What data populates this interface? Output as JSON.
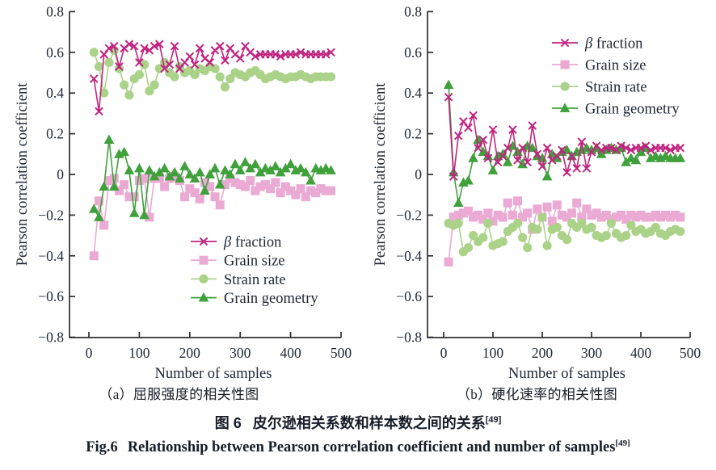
{
  "figure": {
    "caption_a": "（a）屈服强度的相关性图",
    "caption_b": "（b）硬化速率的相关性图",
    "title_zh_label": "图 6",
    "title_zh_text": "皮尔逊相关系数和样本数之间的关系",
    "title_zh_ref": "[49]",
    "title_en_label": "Fig.6",
    "title_en_text": "Relationship between Pearson correlation coefficient and number of samples",
    "title_en_ref": "[49]"
  },
  "colors": {
    "beta": "#c02480",
    "grain_size": "#eaaad3",
    "strain_rate": "#abd289",
    "grain_geometry": "#3fa03c",
    "tick_text": "#1d2633",
    "axis": "#2f2f2f"
  },
  "chart_data": [
    {
      "type": "line",
      "panel": "a",
      "xlabel": "Number of samples",
      "ylabel": "Pearson correlation coefficient",
      "xlim": [
        0,
        500
      ],
      "ylim": [
        -0.8,
        0.8
      ],
      "xticks": [
        0,
        100,
        200,
        300,
        400,
        500
      ],
      "yticks": [
        0.8,
        0.6,
        0.4,
        0.2,
        0,
        -0.2,
        -0.4,
        -0.6,
        -0.8
      ],
      "grid": false,
      "legend_position": "lower-right-inside",
      "x": [
        10,
        20,
        30,
        40,
        50,
        60,
        70,
        80,
        90,
        100,
        110,
        120,
        130,
        140,
        150,
        160,
        170,
        180,
        190,
        200,
        210,
        220,
        230,
        240,
        250,
        260,
        270,
        280,
        290,
        300,
        310,
        320,
        330,
        340,
        350,
        360,
        370,
        380,
        390,
        400,
        410,
        420,
        430,
        440,
        450,
        460,
        470,
        480
      ],
      "series": [
        {
          "name": "β fraction",
          "marker": "x",
          "color_key": "beta",
          "values": [
            0.47,
            0.31,
            0.59,
            0.62,
            0.63,
            0.53,
            0.62,
            0.64,
            0.63,
            0.55,
            0.62,
            0.61,
            0.63,
            0.64,
            0.52,
            0.54,
            0.63,
            0.52,
            0.55,
            0.58,
            0.54,
            0.62,
            0.57,
            0.55,
            0.61,
            0.63,
            0.56,
            0.62,
            0.59,
            0.57,
            0.63,
            0.6,
            0.58,
            0.59,
            0.59,
            0.59,
            0.59,
            0.58,
            0.59,
            0.59,
            0.59,
            0.6,
            0.59,
            0.59,
            0.59,
            0.59,
            0.59,
            0.6
          ]
        },
        {
          "name": "Grain size",
          "marker": "square",
          "color_key": "grain_size",
          "values": [
            -0.4,
            -0.13,
            -0.25,
            -0.03,
            -0.02,
            -0.08,
            -0.05,
            -0.11,
            -0.11,
            -0.03,
            -0.02,
            -0.21,
            -0.02,
            -0.02,
            -0.06,
            -0.02,
            -0.01,
            -0.03,
            -0.11,
            -0.07,
            -0.09,
            -0.12,
            -0.04,
            -0.06,
            -0.11,
            -0.15,
            -0.05,
            -0.02,
            -0.04,
            -0.05,
            -0.06,
            -0.03,
            -0.08,
            -0.06,
            -0.05,
            -0.07,
            -0.04,
            -0.09,
            -0.06,
            -0.08,
            -0.1,
            -0.07,
            -0.11,
            -0.08,
            -0.09,
            -0.07,
            -0.08,
            -0.08
          ]
        },
        {
          "name": "Strain rate",
          "marker": "circle",
          "color_key": "strain_rate",
          "values": [
            0.6,
            0.53,
            0.4,
            0.55,
            0.61,
            0.52,
            0.44,
            0.39,
            0.47,
            0.49,
            0.54,
            0.41,
            0.44,
            0.52,
            0.55,
            0.5,
            0.48,
            0.53,
            0.5,
            0.51,
            0.49,
            0.52,
            0.51,
            0.53,
            0.52,
            0.48,
            0.43,
            0.47,
            0.5,
            0.49,
            0.48,
            0.5,
            0.51,
            0.49,
            0.47,
            0.48,
            0.49,
            0.48,
            0.47,
            0.48,
            0.48,
            0.49,
            0.48,
            0.47,
            0.48,
            0.48,
            0.48,
            0.48
          ]
        },
        {
          "name": "Grain geometry",
          "marker": "triangle",
          "color_key": "grain_geometry",
          "values": [
            -0.17,
            -0.21,
            -0.06,
            0.17,
            -0.06,
            0.1,
            0.11,
            0.02,
            -0.19,
            0.03,
            -0.2,
            0.02,
            -0.01,
            0.01,
            0.03,
            -0.01,
            0.01,
            -0.02,
            0.04,
            0.0,
            -0.02,
            0.01,
            -0.08,
            0.0,
            0.03,
            -0.05,
            0.02,
            0.0,
            0.05,
            0.02,
            0.06,
            0.03,
            0.05,
            0.01,
            0.03,
            0.02,
            0.04,
            0.01,
            0.03,
            0.05,
            0.02,
            0.03,
            0.01,
            -0.03,
            0.03,
            0.02,
            0.03,
            0.02
          ]
        }
      ]
    },
    {
      "type": "line",
      "panel": "b",
      "xlabel": "Number of samples",
      "ylabel": "Pearson correlation coefficient",
      "xlim": [
        0,
        500
      ],
      "ylim": [
        -0.8,
        0.8
      ],
      "xticks": [
        0,
        100,
        200,
        300,
        400,
        500
      ],
      "yticks": [
        0.8,
        0.6,
        0.4,
        0.2,
        0,
        -0.2,
        -0.4,
        -0.6,
        -0.8
      ],
      "grid": false,
      "legend_position": "upper-right-inside",
      "x": [
        10,
        20,
        30,
        40,
        50,
        60,
        70,
        80,
        90,
        100,
        110,
        120,
        130,
        140,
        150,
        160,
        170,
        180,
        190,
        200,
        210,
        220,
        230,
        240,
        250,
        260,
        270,
        280,
        290,
        300,
        310,
        320,
        330,
        340,
        350,
        360,
        370,
        380,
        390,
        400,
        410,
        420,
        430,
        440,
        450,
        460,
        470,
        480
      ],
      "series": [
        {
          "name": "β fraction",
          "marker": "x",
          "color_key": "beta",
          "values": [
            0.38,
            -0.01,
            0.19,
            0.26,
            0.23,
            0.29,
            0.13,
            0.17,
            0.08,
            0.22,
            0.06,
            0.09,
            0.13,
            0.22,
            0.07,
            0.13,
            0.06,
            0.24,
            0.1,
            0.04,
            0.13,
            0.07,
            0.09,
            0.12,
            0.01,
            0.09,
            0.03,
            0.16,
            0.03,
            0.11,
            0.14,
            0.12,
            0.13,
            0.13,
            0.12,
            0.14,
            0.13,
            0.12,
            0.13,
            0.13,
            0.14,
            0.12,
            0.13,
            0.13,
            0.13,
            0.12,
            0.13,
            0.13
          ]
        },
        {
          "name": "Grain size",
          "marker": "square",
          "color_key": "grain_size",
          "values": [
            -0.43,
            -0.21,
            -0.2,
            -0.19,
            -0.18,
            -0.21,
            -0.2,
            -0.22,
            -0.19,
            -0.23,
            -0.2,
            -0.21,
            -0.14,
            -0.2,
            -0.13,
            -0.21,
            -0.19,
            -0.27,
            -0.17,
            -0.21,
            -0.16,
            -0.23,
            -0.15,
            -0.2,
            -0.21,
            -0.19,
            -0.14,
            -0.21,
            -0.17,
            -0.2,
            -0.19,
            -0.21,
            -0.2,
            -0.22,
            -0.21,
            -0.2,
            -0.22,
            -0.2,
            -0.21,
            -0.2,
            -0.21,
            -0.21,
            -0.2,
            -0.21,
            -0.2,
            -0.21,
            -0.2,
            -0.21
          ]
        },
        {
          "name": "Strain rate",
          "marker": "circle",
          "color_key": "strain_rate",
          "values": [
            -0.24,
            -0.25,
            -0.24,
            -0.38,
            -0.36,
            -0.3,
            -0.33,
            -0.31,
            -0.24,
            -0.35,
            -0.34,
            -0.33,
            -0.28,
            -0.26,
            -0.24,
            -0.31,
            -0.36,
            -0.26,
            -0.27,
            -0.21,
            -0.35,
            -0.27,
            -0.26,
            -0.3,
            -0.32,
            -0.24,
            -0.26,
            -0.24,
            -0.27,
            -0.26,
            -0.3,
            -0.31,
            -0.3,
            -0.24,
            -0.29,
            -0.31,
            -0.3,
            -0.25,
            -0.28,
            -0.27,
            -0.29,
            -0.28,
            -0.26,
            -0.29,
            -0.3,
            -0.28,
            -0.27,
            -0.28
          ]
        },
        {
          "name": "Grain geometry",
          "marker": "triangle",
          "color_key": "grain_geometry",
          "values": [
            0.44,
            0.01,
            -0.14,
            -0.04,
            -0.03,
            0.08,
            0.17,
            0.11,
            0.09,
            0.02,
            0.09,
            0.1,
            0.06,
            0.14,
            0.11,
            0.05,
            0.14,
            0.13,
            0.09,
            0.08,
            -0.01,
            0.1,
            0.08,
            0.11,
            0.12,
            0.09,
            0.11,
            0.12,
            0.13,
            0.12,
            0.13,
            0.1,
            0.12,
            0.13,
            0.12,
            0.13,
            0.06,
            0.08,
            0.07,
            0.11,
            0.13,
            0.08,
            0.09,
            0.08,
            0.09,
            0.08,
            0.08,
            0.08
          ]
        }
      ]
    }
  ]
}
